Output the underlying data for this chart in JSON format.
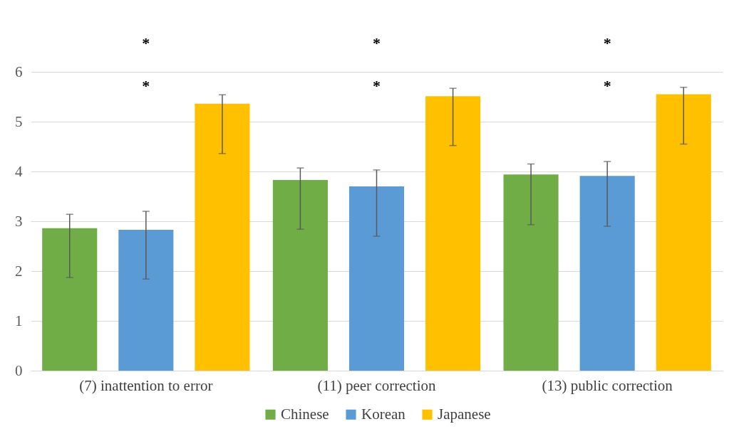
{
  "chart_data": {
    "type": "bar",
    "categories": [
      "(7) inattention to error",
      "(11) peer correction",
      "(13) public correction"
    ],
    "series": [
      {
        "name": "Chinese",
        "color": "#70ad47",
        "values": [
          2.86,
          3.83,
          3.94
        ],
        "errors": [
          [
            1.87,
            3.14
          ],
          [
            2.84,
            4.07
          ],
          [
            2.93,
            4.15
          ]
        ]
      },
      {
        "name": "Korean",
        "color": "#5b9bd5",
        "values": [
          2.83,
          3.7,
          3.91
        ],
        "errors": [
          [
            1.84,
            3.2
          ],
          [
            2.7,
            4.03
          ],
          [
            2.9,
            4.2
          ]
        ]
      },
      {
        "name": "Japanese",
        "color": "#ffc000",
        "values": [
          5.36,
          5.51,
          5.55
        ],
        "errors": [
          [
            4.36,
            5.54
          ],
          [
            4.52,
            5.67
          ],
          [
            4.55,
            5.69
          ]
        ]
      }
    ],
    "ylim": [
      0,
      6
    ],
    "yticks": [
      0,
      1,
      2,
      3,
      4,
      5,
      6
    ],
    "grid": "y",
    "legend": "bottom",
    "annotations": [
      "*",
      "*",
      "*",
      "*",
      "*",
      "*"
    ]
  }
}
